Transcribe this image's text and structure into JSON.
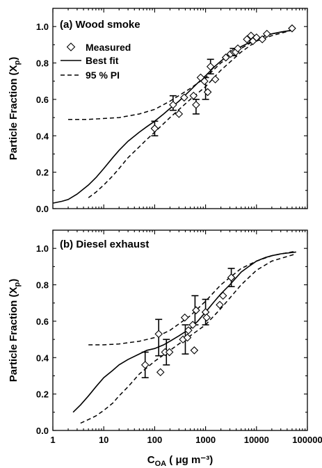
{
  "chart_data": [
    {
      "type": "scatter",
      "title": "(a) Wood smoke",
      "xlabel": "C",
      "xlabel_sub": "OA",
      "xlabel_unit": " ( μg m⁻³)",
      "ylabel": "Particle Fraction (X",
      "ylabel_sub": "p",
      "ylabel_tail": ")",
      "xscale": "log",
      "xlim": [
        1,
        100000
      ],
      "ylim": [
        0.0,
        1.1
      ],
      "yticks": [
        "0.0",
        "0.2",
        "0.4",
        "0.6",
        "0.8",
        "1.0"
      ],
      "xticks": [
        "1",
        "10",
        "100",
        "1000",
        "10000",
        "100000"
      ],
      "legend": {
        "position": "top-left",
        "entries": [
          "Measured",
          "Best fit",
          "95 % PI"
        ]
      },
      "series": [
        {
          "name": "Measured",
          "kind": "points",
          "x": [
            100,
            230,
            300,
            380,
            580,
            650,
            800,
            950,
            1100,
            1250,
            1550,
            2500,
            3100,
            3600,
            3900,
            4300,
            6500,
            7800,
            8500,
            10000,
            13000,
            16000,
            50000
          ],
          "y": [
            0.44,
            0.57,
            0.52,
            0.61,
            0.62,
            0.57,
            0.72,
            0.7,
            0.64,
            0.78,
            0.71,
            0.83,
            0.85,
            0.86,
            0.86,
            0.88,
            0.93,
            0.95,
            0.92,
            0.94,
            0.93,
            0.96,
            0.99
          ]
        },
        {
          "name": "Error bars",
          "kind": "errorbars",
          "x": [
            100,
            230,
            650,
            1000,
            1250,
            3500
          ],
          "y": [
            0.44,
            0.58,
            0.56,
            0.66,
            0.78,
            0.86
          ],
          "err": [
            0.04,
            0.04,
            0.04,
            0.06,
            0.04,
            0.02
          ]
        },
        {
          "name": "Best fit",
          "kind": "line",
          "x": [
            1,
            1.5,
            2,
            3,
            5,
            7,
            10,
            15,
            20,
            30,
            50,
            70,
            100,
            150,
            200,
            300,
            500,
            700,
            1000,
            1500,
            2000,
            3000,
            5000,
            7000,
            10000,
            15000,
            20000,
            30000,
            50000
          ],
          "y": [
            0.03,
            0.04,
            0.05,
            0.08,
            0.13,
            0.17,
            0.22,
            0.28,
            0.32,
            0.37,
            0.42,
            0.45,
            0.48,
            0.52,
            0.55,
            0.59,
            0.65,
            0.69,
            0.73,
            0.78,
            0.81,
            0.85,
            0.89,
            0.91,
            0.93,
            0.95,
            0.96,
            0.97,
            0.98
          ]
        },
        {
          "name": "95 % PI upper",
          "kind": "dashed",
          "x": [
            2,
            5,
            10,
            20,
            50,
            100,
            200,
            500,
            1000,
            2000,
            5000,
            10000,
            20000,
            50000
          ],
          "y": [
            0.49,
            0.49,
            0.495,
            0.5,
            0.52,
            0.545,
            0.59,
            0.66,
            0.72,
            0.8,
            0.88,
            0.93,
            0.96,
            0.98
          ]
        },
        {
          "name": "95 % PI lower",
          "kind": "dashed",
          "x": [
            5,
            7,
            10,
            15,
            20,
            30,
            50,
            70,
            100,
            200,
            500,
            1000,
            2000,
            5000,
            10000,
            20000,
            50000
          ],
          "y": [
            0.06,
            0.09,
            0.13,
            0.18,
            0.22,
            0.28,
            0.34,
            0.38,
            0.42,
            0.5,
            0.6,
            0.67,
            0.76,
            0.86,
            0.92,
            0.95,
            0.98
          ]
        }
      ]
    },
    {
      "type": "scatter",
      "title": "(b) Diesel exhaust",
      "xlabel": "C",
      "xlabel_sub": "OA",
      "xlabel_unit": " ( μg m⁻³)",
      "ylabel": "Particle Fraction (X",
      "ylabel_sub": "p",
      "ylabel_tail": ")",
      "xscale": "log",
      "xlim": [
        1,
        100000
      ],
      "ylim": [
        0.0,
        1.1
      ],
      "yticks": [
        "0.0",
        "0.2",
        "0.4",
        "0.6",
        "0.8",
        "1.0"
      ],
      "xticks": [
        "1",
        "10",
        "100",
        "1000",
        "10000",
        "100000"
      ],
      "series": [
        {
          "name": "Measured",
          "kind": "points",
          "x": [
            65,
            120,
            130,
            160,
            195,
            360,
            390,
            440,
            460,
            560,
            600,
            650,
            1000,
            1050,
            1900,
            2200,
            3200
          ],
          "y": [
            0.36,
            0.53,
            0.32,
            0.43,
            0.43,
            0.5,
            0.62,
            0.51,
            0.55,
            0.58,
            0.44,
            0.66,
            0.65,
            0.62,
            0.69,
            0.74,
            0.84
          ]
        },
        {
          "name": "Error bars",
          "kind": "errorbars",
          "x": [
            65,
            120,
            170,
            400,
            620,
            1000,
            3200
          ],
          "y": [
            0.36,
            0.51,
            0.43,
            0.5,
            0.66,
            0.65,
            0.84
          ],
          "err": [
            0.07,
            0.1,
            0.07,
            0.08,
            0.08,
            0.07,
            0.05
          ]
        },
        {
          "name": "Best fit",
          "kind": "line",
          "x": [
            2.5,
            3.5,
            5,
            7,
            10,
            15,
            20,
            30,
            50,
            70,
            100,
            150,
            200,
            300,
            500,
            700,
            1000,
            1500,
            2000,
            3000,
            5000,
            7000,
            10000,
            15000,
            20000,
            30000,
            60000
          ],
          "y": [
            0.1,
            0.14,
            0.19,
            0.24,
            0.29,
            0.33,
            0.36,
            0.39,
            0.42,
            0.44,
            0.45,
            0.47,
            0.49,
            0.52,
            0.56,
            0.6,
            0.65,
            0.71,
            0.75,
            0.8,
            0.87,
            0.9,
            0.93,
            0.95,
            0.96,
            0.97,
            0.98
          ]
        },
        {
          "name": "95 % PI upper",
          "kind": "dashed",
          "x": [
            5,
            10,
            20,
            50,
            100,
            200,
            500,
            1000,
            2000,
            5000,
            10000,
            20000,
            60000
          ],
          "y": [
            0.47,
            0.47,
            0.475,
            0.49,
            0.51,
            0.55,
            0.63,
            0.71,
            0.8,
            0.89,
            0.93,
            0.96,
            0.985
          ]
        },
        {
          "name": "95 % PI lower",
          "kind": "dashed",
          "x": [
            3.5,
            5,
            7,
            10,
            15,
            20,
            30,
            50,
            100,
            200,
            500,
            1000,
            2000,
            5000,
            10000,
            20000,
            60000
          ],
          "y": [
            0.04,
            0.06,
            0.08,
            0.11,
            0.15,
            0.19,
            0.24,
            0.31,
            0.38,
            0.44,
            0.52,
            0.58,
            0.67,
            0.8,
            0.88,
            0.93,
            0.97
          ]
        }
      ]
    }
  ]
}
